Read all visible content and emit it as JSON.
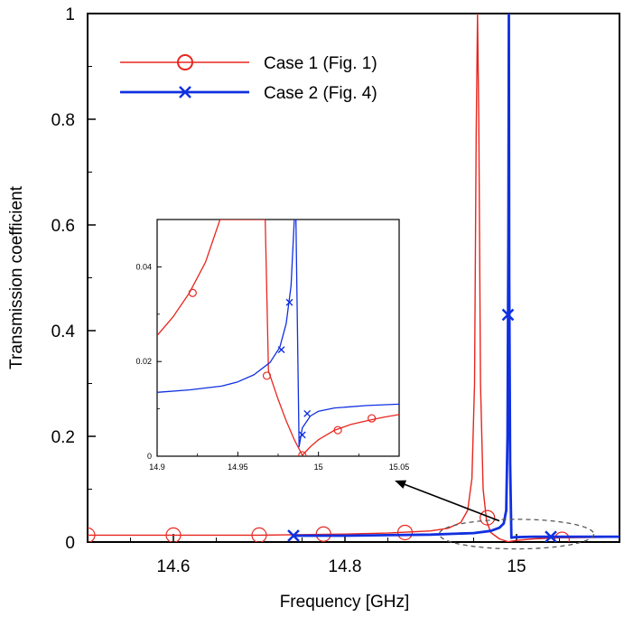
{
  "chart_data": [
    {
      "type": "line",
      "xlabel": "Frequency [GHz]",
      "ylabel": "Transmission coefficient",
      "xlim": [
        14.5,
        15.12
      ],
      "ylim": [
        0,
        1
      ],
      "x_ticks": [
        14.6,
        14.8,
        15
      ],
      "x_tick_labels": [
        "14.6",
        "14.8",
        "15"
      ],
      "y_ticks": [
        0,
        0.2,
        0.4,
        0.6,
        0.8,
        1
      ],
      "y_tick_labels": [
        "0",
        "0.2",
        "0.4",
        "0.6",
        "0.8",
        "1"
      ],
      "grid": false,
      "legend_position": "top-left",
      "series": [
        {
          "name": "Case 1 (Fig. 1)",
          "color": "#e8261f",
          "marker": "circle",
          "points": [
            [
              14.5,
              0.013
            ],
            [
              14.6,
              0.013
            ],
            [
              14.7,
              0.013
            ],
            [
              14.75,
              0.014
            ],
            [
              14.8,
              0.015
            ],
            [
              14.85,
              0.017
            ],
            [
              14.9,
              0.021
            ],
            [
              14.92,
              0.026
            ],
            [
              14.935,
              0.037
            ],
            [
              14.943,
              0.06
            ],
            [
              14.948,
              0.12
            ],
            [
              14.951,
              0.3
            ],
            [
              14.953,
              0.77
            ],
            [
              14.9545,
              1.0
            ],
            [
              14.956,
              0.8
            ],
            [
              14.958,
              0.3
            ],
            [
              14.961,
              0.1
            ],
            [
              14.965,
              0.04
            ],
            [
              14.97,
              0.018
            ],
            [
              14.98,
              0.006
            ],
            [
              14.99,
              0.0005
            ],
            [
              15.0,
              0.003
            ],
            [
              15.02,
              0.006
            ],
            [
              15.05,
              0.008
            ],
            [
              15.12,
              0.009
            ]
          ],
          "markers_x": [
            14.5,
            14.6,
            14.7,
            14.775,
            14.87,
            14.966,
            15.053
          ],
          "markers_y": [
            0.013,
            0.013,
            0.013,
            0.015,
            0.018,
            0.046,
            0.005
          ]
        },
        {
          "name": "Case 2 (Fig. 4)",
          "color": "#1030e0",
          "marker": "x",
          "points": [
            [
              14.74,
              0.012
            ],
            [
              14.8,
              0.012
            ],
            [
              14.85,
              0.013
            ],
            [
              14.9,
              0.014
            ],
            [
              14.95,
              0.017
            ],
            [
              14.97,
              0.021
            ],
            [
              14.98,
              0.027
            ],
            [
              14.985,
              0.035
            ],
            [
              14.988,
              0.06
            ],
            [
              14.9895,
              0.2
            ],
            [
              14.9905,
              0.6
            ],
            [
              14.991,
              1.0
            ],
            [
              14.9915,
              0.5
            ],
            [
              14.9925,
              0.15
            ],
            [
              14.994,
              0.008
            ],
            [
              14.997,
              0.009
            ],
            [
              15.02,
              0.01
            ],
            [
              15.12,
              0.01
            ]
          ],
          "markers_x": [
            14.74,
            14.99,
            15.04
          ],
          "markers_y": [
            0.012,
            0.43,
            0.01
          ]
        }
      ],
      "annotation": {
        "ellipse_center": [
          15.0,
          0.015
        ],
        "ellipse_radius": [
          0.09,
          0.028
        ],
        "arrow_from": [
          14.98,
          0.04
        ],
        "arrow_to": [
          14.86,
          0.115
        ]
      }
    },
    {
      "type": "line",
      "role": "inset",
      "xlim": [
        14.9,
        15.05
      ],
      "ylim": [
        0,
        0.05
      ],
      "x_ticks": [
        14.9,
        14.95,
        15.0,
        15.05
      ],
      "x_tick_labels": [
        "14.9",
        "14.95",
        "15",
        "15.05"
      ],
      "y_ticks": [
        0,
        0.02,
        0.04
      ],
      "y_tick_labels": [
        "0",
        "0.02",
        "0.04"
      ],
      "series": [
        {
          "name": "Case 1 (Fig. 1)",
          "color": "#e8261f",
          "marker": "circle",
          "points": [
            [
              14.9,
              0.0255
            ],
            [
              14.91,
              0.0295
            ],
            [
              14.92,
              0.0345
            ],
            [
              14.93,
              0.041
            ],
            [
              14.935,
              0.046
            ],
            [
              14.939,
              0.05
            ],
            [
              14.967,
              0.05
            ],
            [
              14.969,
              0.018
            ],
            [
              14.975,
              0.012
            ],
            [
              14.98,
              0.0075
            ],
            [
              14.985,
              0.0035
            ],
            [
              14.99,
              0.0002
            ],
            [
              14.995,
              0.002
            ],
            [
              15.0,
              0.0035
            ],
            [
              15.01,
              0.0055
            ],
            [
              15.02,
              0.0067
            ],
            [
              15.03,
              0.0075
            ],
            [
              15.04,
              0.0082
            ],
            [
              15.05,
              0.0088
            ]
          ],
          "markers_x": [
            14.922,
            14.968,
            14.99,
            15.012,
            15.033
          ],
          "markers_y": [
            0.0345,
            0.017,
            0.0002,
            0.0055,
            0.008
          ]
        },
        {
          "name": "Case 2 (Fig. 4)",
          "color": "#1030e0",
          "marker": "x",
          "points": [
            [
              14.9,
              0.0135
            ],
            [
              14.92,
              0.014
            ],
            [
              14.94,
              0.0148
            ],
            [
              14.95,
              0.0157
            ],
            [
              14.96,
              0.0172
            ],
            [
              14.97,
              0.0198
            ],
            [
              14.976,
              0.023
            ],
            [
              14.98,
              0.028
            ],
            [
              14.983,
              0.036
            ],
            [
              14.985,
              0.05
            ],
            [
              14.986,
              0.05
            ],
            [
              14.988,
              0.002
            ],
            [
              14.99,
              0.006
            ],
            [
              14.995,
              0.0085
            ],
            [
              15.0,
              0.0095
            ],
            [
              15.01,
              0.0102
            ],
            [
              15.03,
              0.0107
            ],
            [
              15.05,
              0.011
            ]
          ],
          "markers_x": [
            14.977,
            14.982,
            14.99,
            14.993
          ],
          "markers_y": [
            0.0225,
            0.0325,
            0.0045,
            0.009
          ]
        }
      ]
    }
  ]
}
